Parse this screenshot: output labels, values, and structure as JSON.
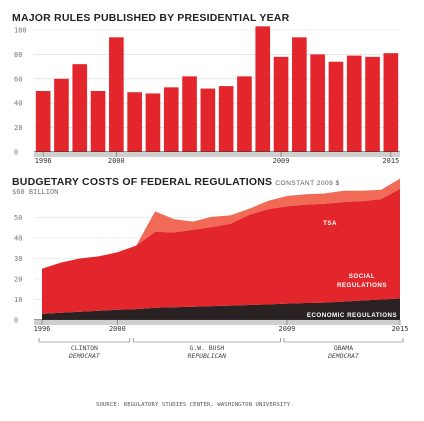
{
  "chart_data": [
    {
      "type": "bar",
      "title": "MAJOR RULES PUBLISHED BY PRESIDENTIAL YEAR",
      "ylim": [
        0,
        100
      ],
      "yticks": [
        0,
        20,
        40,
        60,
        80,
        100
      ],
      "grid": true,
      "color": "#e3262c",
      "categories": [
        "1996",
        "1997",
        "1998",
        "1999",
        "2000",
        "2001",
        "2002",
        "2003",
        "2004",
        "2005",
        "2006",
        "2007",
        "2008",
        "2009",
        "2010",
        "2011",
        "2012",
        "2013",
        "2014",
        "2015"
      ],
      "values": [
        50,
        60,
        72,
        50,
        94,
        49,
        48,
        53,
        62,
        52,
        54,
        62,
        103,
        78,
        94,
        80,
        74,
        79,
        78,
        81
      ],
      "xtick_labels": [
        "1996",
        "2000",
        "2009",
        "2015"
      ]
    },
    {
      "type": "area",
      "title": "BUDGETARY COSTS OF FEDERAL REGULATIONS",
      "units_label": "CONSTANT 2009 $",
      "ylabel": "$60 BILLION",
      "ylim": [
        0,
        60
      ],
      "yticks": [
        0,
        10,
        20,
        30,
        40,
        50
      ],
      "grid": true,
      "x": [
        1996,
        1997,
        1998,
        1999,
        2000,
        2001,
        2002,
        2003,
        2004,
        2005,
        2006,
        2007,
        2008,
        2009,
        2010,
        2011,
        2012,
        2013,
        2014,
        2015
      ],
      "series": [
        {
          "name": "ECONOMIC REGULATIONS",
          "color": "#2a2222",
          "values": [
            3,
            3.5,
            4,
            4.5,
            5,
            5.3,
            6,
            6.2,
            6.5,
            6.8,
            7,
            7.3,
            7.6,
            8,
            8.3,
            8.5,
            9,
            9.5,
            10,
            10.5
          ]
        },
        {
          "name": "SOCIAL REGULATIONS",
          "color": "#e3262c",
          "values": [
            22,
            24.5,
            26,
            26.5,
            28,
            31,
            37,
            36.5,
            37.5,
            38.5,
            40,
            44,
            46.5,
            47.5,
            48,
            48.2,
            48.5,
            48.5,
            49,
            53.5
          ]
        },
        {
          "name": "TSA",
          "color": "#f06a55",
          "values": [
            0,
            0,
            0,
            0,
            0,
            0,
            10,
            6.5,
            4,
            5,
            4,
            3,
            4,
            5,
            5,
            5,
            5.5,
            5,
            4.5,
            5
          ]
        }
      ],
      "xtick_labels": [
        "1996",
        "2000",
        "2009",
        "2015"
      ]
    }
  ],
  "administrations": [
    {
      "name": "CLINTON",
      "party": "DEMOCRAT",
      "start": 1996,
      "end": 2000.5
    },
    {
      "name": "G.W. BUSH",
      "party": "REPUBLICAN",
      "start": 2001,
      "end": 2008.5
    },
    {
      "name": "OBAMA",
      "party": "DEMOCRAT",
      "start": 2009,
      "end": 2015.5
    }
  ],
  "source": "SOURCE: REGULATORY STUDIES CENTER, WASHINGTON UNIVERSITY"
}
